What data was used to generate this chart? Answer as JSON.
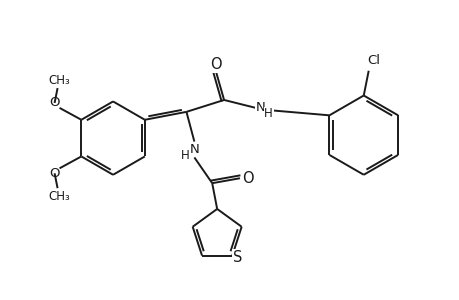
{
  "bg_color": "#ffffff",
  "line_color": "#1a1a1a",
  "line_width": 1.4,
  "font_size": 9.5,
  "figsize": [
    4.6,
    3.0
  ],
  "dpi": 100,
  "xlim": [
    0,
    460
  ],
  "ylim": [
    0,
    300
  ]
}
